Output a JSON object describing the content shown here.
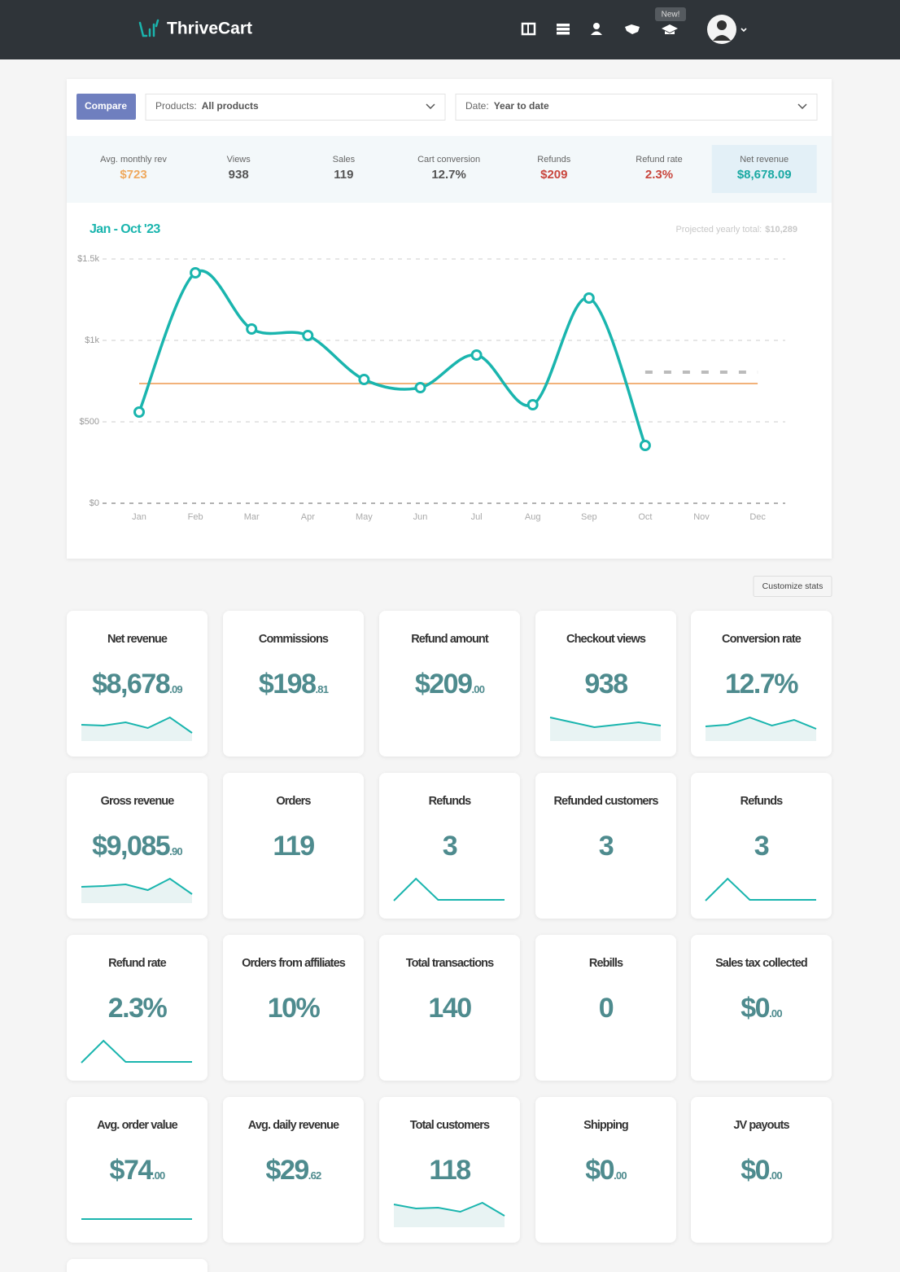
{
  "header": {
    "logo": "ThriveCart",
    "badge": "New!"
  },
  "filters": {
    "compare": "Compare",
    "products_label": "Products:",
    "products_value": "All products",
    "date_label": "Date:",
    "date_value": "Year to date"
  },
  "stats": [
    {
      "label": "Avg. monthly rev",
      "value": "$723",
      "color": "#efa95e"
    },
    {
      "label": "Views",
      "value": "938",
      "color": "#555555"
    },
    {
      "label": "Sales",
      "value": "119",
      "color": "#555555"
    },
    {
      "label": "Cart conversion",
      "value": "12.7%",
      "color": "#555555"
    },
    {
      "label": "Refunds",
      "value": "$209",
      "color": "#c9463d"
    },
    {
      "label": "Refund rate",
      "value": "2.3%",
      "color": "#c9463d"
    },
    {
      "label": "Net revenue",
      "value": "$8,678.09",
      "color": "#1aa9a3",
      "highlight": true
    }
  ],
  "chart_data": {
    "type": "line",
    "title": "Jan - Oct '23",
    "projection_label": "Projected yearly total:",
    "projection_total": "$10,289",
    "categories": [
      "Jan",
      "Feb",
      "Mar",
      "Apr",
      "May",
      "Jun",
      "Jul",
      "Aug",
      "Sep",
      "Oct",
      "Nov",
      "Dec"
    ],
    "series": [
      {
        "color": "#1ab5ae",
        "values": [
          560,
          1415,
          1070,
          1030,
          760,
          710,
          910,
          605,
          1260,
          355,
          null,
          null
        ]
      }
    ],
    "average": 735,
    "average_color": "#f2b27a",
    "projection_values": [
      null,
      null,
      null,
      null,
      null,
      null,
      null,
      null,
      null,
      805,
      805,
      805
    ],
    "projection_color": "#bbbbbb",
    "ylim": [
      0,
      1500
    ],
    "yticks": [
      {
        "value": 0,
        "label": "$0"
      },
      {
        "value": 500,
        "label": "$500"
      },
      {
        "value": 1000,
        "label": "$1k"
      },
      {
        "value": 1500,
        "label": "$1.5k"
      }
    ],
    "grid": true
  },
  "customize": "Customize stats",
  "cards": [
    {
      "title": "Net revenue",
      "value": "$8,678",
      "cents": ".09",
      "sparkline": [
        20,
        19,
        23,
        16,
        29,
        10
      ],
      "style": "area"
    },
    {
      "title": "Commissions",
      "value": "$198",
      "cents": ".81"
    },
    {
      "title": "Refund amount",
      "value": "$209",
      "cents": ".00"
    },
    {
      "title": "Checkout views",
      "value": "938",
      "sparkline": [
        29,
        23,
        17,
        20,
        23,
        19
      ],
      "style": "area"
    },
    {
      "title": "Conversion rate",
      "value": "12.7%",
      "sparkline": [
        18,
        20,
        29,
        19,
        26,
        15
      ],
      "style": "area"
    },
    {
      "title": "Gross revenue",
      "value": "$9,085",
      "cents": ".90",
      "sparkline": [
        20,
        21,
        23,
        16,
        30,
        11
      ],
      "style": "area"
    },
    {
      "title": "Orders",
      "value": "119"
    },
    {
      "title": "Refunds",
      "value": "3",
      "sparkline": [
        3,
        30,
        4,
        4,
        4,
        4
      ],
      "style": "line"
    },
    {
      "title": "Refunded customers",
      "value": "3"
    },
    {
      "title": "Refunds",
      "value": "3",
      "sparkline": [
        3,
        30,
        4,
        4,
        4,
        4
      ],
      "style": "line"
    },
    {
      "title": "Refund rate",
      "value": "2.3%",
      "sparkline": [
        3,
        30,
        4,
        4,
        4,
        4
      ],
      "style": "line"
    },
    {
      "title": "Orders from affiliates",
      "value": "10%"
    },
    {
      "title": "Total transactions",
      "value": "140"
    },
    {
      "title": "Rebills",
      "value": "0"
    },
    {
      "title": "Sales tax collected",
      "value": "$0",
      "cents": ".00"
    },
    {
      "title": "Avg. order value",
      "value": "$74",
      "cents": ".00",
      "sparkline": [
        10,
        10,
        10,
        10,
        10,
        10
      ],
      "style": "line"
    },
    {
      "title": "Avg. daily revenue",
      "value": "$29",
      "cents": ".62"
    },
    {
      "title": "Total customers",
      "value": "118",
      "sparkline": [
        28,
        23,
        24,
        19,
        30,
        14
      ],
      "style": "area"
    },
    {
      "title": "Shipping",
      "value": "$0",
      "cents": ".00"
    },
    {
      "title": "JV payouts",
      "value": "$0",
      "cents": ".00"
    }
  ]
}
